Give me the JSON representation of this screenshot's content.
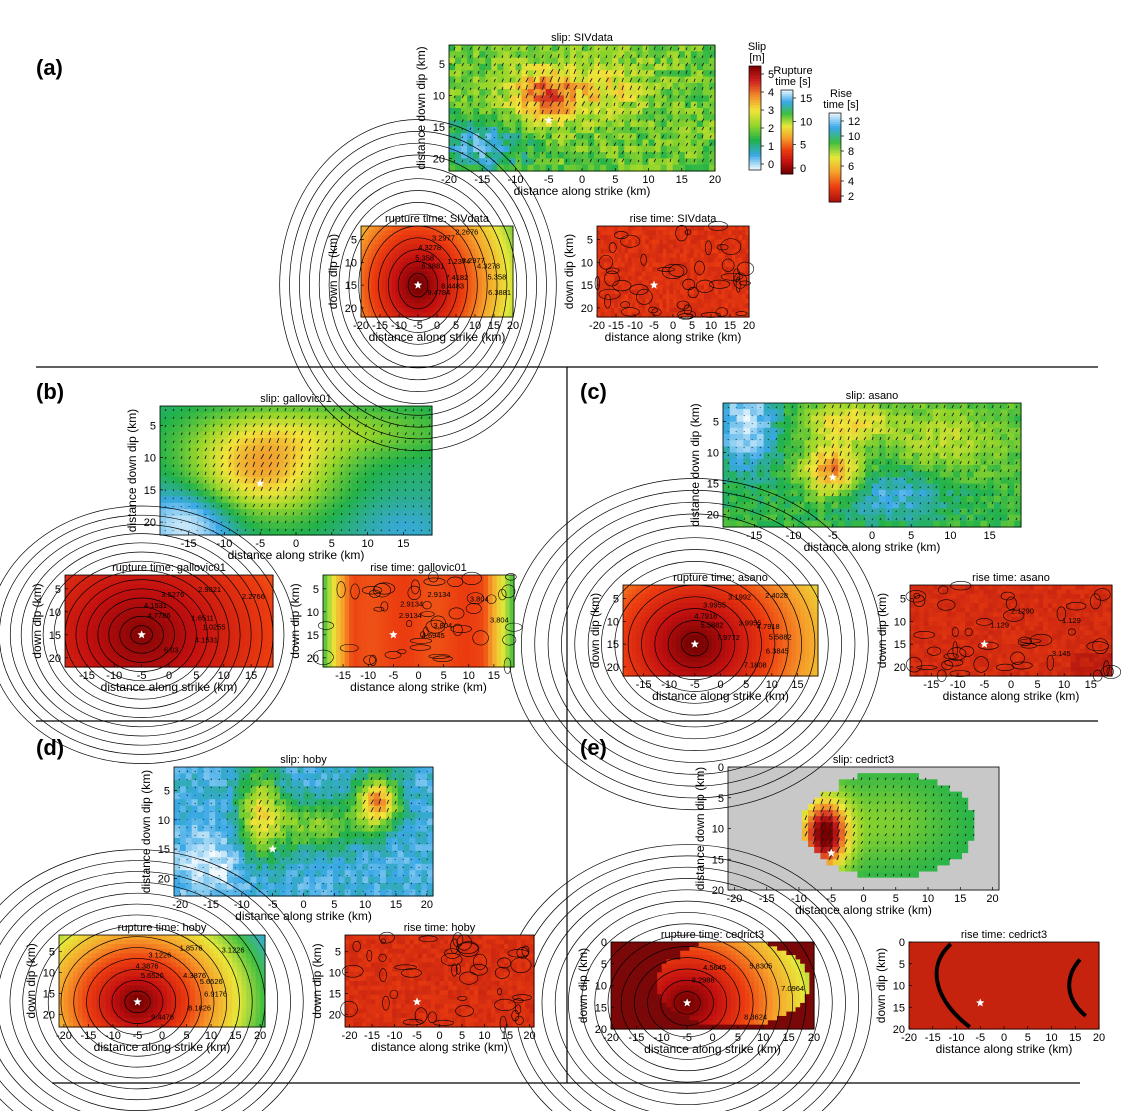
{
  "figure": {
    "colors": {
      "background_gray": "#c8c8c8",
      "star": "#ffffff",
      "arrow": "#1a1a1a",
      "contour": "#000000",
      "slip_scale": [
        "#f4fbff",
        "#39a8e6",
        "#21b24a",
        "#96d62a",
        "#f2e43a",
        "#f08a2a",
        "#d02020",
        "#7a0000"
      ],
      "rupture_scale": [
        "#6a0000",
        "#c31010",
        "#ec3d10",
        "#f6a02b",
        "#e8e83a",
        "#3fbf3f",
        "#38a8e8",
        "#eef8ff"
      ],
      "rise_scale": [
        "#a80f0f",
        "#ec3d10",
        "#f6a02b",
        "#e8e83a",
        "#3fbf3f",
        "#38a8e8",
        "#eef8ff"
      ]
    },
    "colorbars": [
      {
        "title_lines": [
          "Slip",
          "[m]"
        ],
        "ticks": [
          "5",
          "4",
          "3",
          "2",
          "1",
          "0"
        ],
        "scale": "slip"
      },
      {
        "title_lines": [
          "Rupture",
          "time [s]"
        ],
        "ticks": [
          "15",
          "10",
          "5",
          "0"
        ],
        "scale": "rupture"
      },
      {
        "title_lines": [
          "Rise",
          "time [s]"
        ],
        "ticks": [
          "12",
          "10",
          "8",
          "6",
          "4",
          "2"
        ],
        "scale": "rise"
      }
    ],
    "panels": [
      {
        "label": "(a)",
        "slip": {
          "title": "slip: SIVdata",
          "xlabel": "distance along strike (km)",
          "ylabel": "distance down dip (km)",
          "xticks": [
            "-20",
            "-15",
            "-10",
            "-5",
            "0",
            "5",
            "10",
            "15",
            "20"
          ],
          "yticks": [
            "5",
            "10",
            "15",
            "20"
          ]
        },
        "rupture": {
          "title": "rupture time: SIVdata",
          "xlabel": "distance along strike (km)",
          "ylabel": "down dip (km)",
          "xticks": [
            "-20",
            "-15",
            "-10",
            "-5",
            "0",
            "5",
            "10",
            "15",
            "20"
          ],
          "yticks": [
            "5",
            "10",
            "15",
            "20"
          ],
          "contour_labels": [
            "6.3881",
            "5.358",
            "4.3278",
            "3.2977",
            "2.2676",
            "1.2374",
            "3.2977",
            "4.3278",
            "5.358",
            "6.3881",
            "7.4182",
            "8.4483",
            "9.4784"
          ]
        },
        "rise": {
          "title": "rise time: SIVdata",
          "xlabel": "distance along strike (km)",
          "ylabel": "down dip (km)",
          "xticks": [
            "-20",
            "-15",
            "-10",
            "-5",
            "0",
            "5",
            "10",
            "15",
            "20"
          ],
          "yticks": [
            "5",
            "10",
            "15",
            "20"
          ]
        }
      },
      {
        "label": "(b)",
        "slip": {
          "title": "slip: gallovic01",
          "xlabel": "distance along strike (km)",
          "ylabel": "distance down dip (km)",
          "xticks": [
            "-15",
            "-10",
            "-5",
            "0",
            "5",
            "10",
            "15"
          ],
          "yticks": [
            "5",
            "10",
            "15",
            "20"
          ]
        },
        "rupture": {
          "title": "rupture time: gallovic01",
          "xlabel": "distance along strike (km)",
          "ylabel": "down dip (km)",
          "xticks": [
            "-15",
            "-10",
            "-5",
            "0",
            "5",
            "10",
            "15"
          ],
          "yticks": [
            "5",
            "10",
            "15",
            "20"
          ],
          "contour_labels": [
            "4.7786",
            "4.1531",
            "3.5276",
            "2.9021",
            "2.2766",
            "1.6511",
            "1.0255",
            "4.1531",
            "6.03"
          ]
        },
        "rise": {
          "title": "rise time: gallovic01",
          "xlabel": "distance along strike (km)",
          "ylabel": "down dip (km)",
          "xticks": [
            "-15",
            "-10",
            "-5",
            "0",
            "5",
            "10",
            "15"
          ],
          "yticks": [
            "5",
            "10",
            "15",
            "20"
          ],
          "contour_labels": [
            "2.9134",
            "2.9134",
            "2.9134",
            "3.804",
            "3.804",
            "3.804",
            "4.6945"
          ]
        }
      },
      {
        "label": "(c)",
        "slip": {
          "title": "slip: asano",
          "xlabel": "distance along strike (km)",
          "ylabel": "distance down dip (km)",
          "xticks": [
            "-15",
            "-10",
            "-5",
            "0",
            "5",
            "10",
            "15"
          ],
          "yticks": [
            "5",
            "10",
            "15",
            "20"
          ]
        },
        "rupture": {
          "title": "rupture time: asano",
          "xlabel": "distance along strike (km)",
          "ylabel": "down dip (km)",
          "xticks": [
            "-15",
            "-10",
            "-5",
            "0",
            "5",
            "10",
            "15"
          ],
          "yticks": [
            "5",
            "10",
            "15",
            "20"
          ],
          "contour_labels": [
            "5.5882",
            "4.7918",
            "3.9955",
            "3.1992",
            "2.4028",
            "3.9955",
            "4.7918",
            "5.5882",
            "6.3845",
            "7.1808",
            "7.9772"
          ]
        },
        "rise": {
          "title": "rise time: asano",
          "xlabel": "distance along strike (km)",
          "ylabel": "down dip (km)",
          "xticks": [
            "-15",
            "-10",
            "-5",
            "0",
            "5",
            "10",
            "15"
          ],
          "yticks": [
            "5",
            "10",
            "15",
            "20"
          ],
          "contour_labels": [
            "1.129",
            "2.1290",
            "1.129",
            "3.145"
          ]
        }
      },
      {
        "label": "(d)",
        "slip": {
          "title": "slip: hoby",
          "xlabel": "distance along strike (km)",
          "ylabel": "distance down dip (km)",
          "xticks": [
            "-20",
            "-15",
            "-10",
            "-5",
            "0",
            "5",
            "10",
            "15",
            "20"
          ],
          "yticks": [
            "5",
            "10",
            "15",
            "20"
          ]
        },
        "rupture": {
          "title": "rupture time: hoby",
          "xlabel": "distance along strike (km)",
          "ylabel": "down dip (km)",
          "xticks": [
            "-20",
            "-15",
            "-10",
            "-5",
            "0",
            "5",
            "10",
            "15",
            "20"
          ],
          "yticks": [
            "5",
            "10",
            "15",
            "20"
          ],
          "contour_labels": [
            "5.6526",
            "4.3876",
            "3.1226",
            "1.8576",
            "3.1226",
            "4.3876",
            "5.6526",
            "6.9176",
            "8.1826",
            "9.4476"
          ]
        },
        "rise": {
          "title": "rise time: hoby",
          "xlabel": "distance along strike (km)",
          "ylabel": "down dip (km)",
          "xticks": [
            "-20",
            "-15",
            "-10",
            "-5",
            "0",
            "5",
            "10",
            "15",
            "20"
          ],
          "yticks": [
            "5",
            "10",
            "15",
            "20"
          ]
        }
      },
      {
        "label": "(e)",
        "slip": {
          "title": "slip: cedrict3",
          "xlabel": "distance along strike (km)",
          "ylabel": "distance down dip (km)",
          "xticks": [
            "-20",
            "-15",
            "-10",
            "-5",
            "0",
            "5",
            "10",
            "15",
            "20"
          ],
          "yticks": [
            "0",
            "5",
            "10",
            "15",
            "20"
          ]
        },
        "rupture": {
          "title": "rupture time: cedrict3",
          "xlabel": "distance along strike (km)",
          "ylabel": "down dip (km)",
          "xticks": [
            "-20",
            "-15",
            "-10",
            "-5",
            "0",
            "5",
            "10",
            "15",
            "20"
          ],
          "yticks": [
            "0",
            "5",
            "10",
            "15",
            "20"
          ],
          "contour_labels": [
            "3.2986",
            "4.5645",
            "5.8305",
            "7.0964",
            "8.3624"
          ]
        },
        "rise": {
          "title": "rise time: cedrict3",
          "xlabel": "distance along strike (km)",
          "ylabel": "down dip (km)",
          "xticks": [
            "-20",
            "-15",
            "-10",
            "-5",
            "0",
            "5",
            "10",
            "15",
            "20"
          ],
          "yticks": [
            "0",
            "5",
            "10",
            "15",
            "20"
          ]
        }
      }
    ]
  },
  "chart_data": [
    {
      "type": "heatmap",
      "title": "slip: SIVdata",
      "xlabel": "distance along strike (km)",
      "ylabel": "distance down dip (km)",
      "xlim": [
        -20,
        20
      ],
      "ylim": [
        22,
        2
      ],
      "colorbar": "Slip [m]",
      "clim": [
        0,
        5
      ],
      "hypocenter": [
        -5,
        14
      ],
      "peak_slip_near": [
        -5,
        10
      ],
      "peak_slip_value": 4
    },
    {
      "type": "heatmap",
      "title": "rupture time: SIVdata",
      "xlabel": "distance along strike (km)",
      "ylabel": "down dip (km)",
      "xlim": [
        -20,
        20
      ],
      "ylim": [
        22,
        2
      ],
      "colorbar": "Rupture time [s]",
      "clim": [
        0,
        15
      ],
      "hypocenter": [
        -5,
        15
      ],
      "contour_levels": [
        1.2374,
        2.2676,
        3.2977,
        4.3278,
        5.358,
        6.3881,
        7.4182,
        8.4483,
        9.4784
      ]
    },
    {
      "type": "heatmap",
      "title": "rise time: SIVdata",
      "xlabel": "distance along strike (km)",
      "ylabel": "down dip (km)",
      "xlim": [
        -20,
        20
      ],
      "ylim": [
        22,
        2
      ],
      "colorbar": "Rise time [s]",
      "clim": [
        1,
        12
      ],
      "hypocenter": [
        -5,
        15
      ]
    },
    {
      "type": "heatmap",
      "title": "slip: gallovic01",
      "xlabel": "distance along strike (km)",
      "ylabel": "distance down dip (km)",
      "xlim": [
        -19,
        19
      ],
      "ylim": [
        22,
        2
      ],
      "colorbar": "Slip [m]",
      "clim": [
        0,
        5
      ],
      "hypocenter": [
        -5,
        14
      ],
      "peak_slip_near": [
        -6,
        13
      ],
      "peak_slip_value": 3.5
    },
    {
      "type": "heatmap",
      "title": "rupture time: gallovic01",
      "xlabel": "distance along strike (km)",
      "ylabel": "down dip (km)",
      "xlim": [
        -19,
        19
      ],
      "ylim": [
        22,
        2
      ],
      "colorbar": "Rupture time [s]",
      "clim": [
        0,
        15
      ],
      "hypocenter": [
        -5,
        15
      ],
      "contour_levels": [
        1.0255,
        1.6511,
        2.2766,
        2.9021,
        3.5276,
        4.1531,
        4.7786,
        6.03
      ]
    },
    {
      "type": "heatmap",
      "title": "rise time: gallovic01",
      "xlabel": "distance along strike (km)",
      "ylabel": "down dip (km)",
      "xlim": [
        -19,
        19
      ],
      "ylim": [
        22,
        2
      ],
      "colorbar": "Rise time [s]",
      "clim": [
        1,
        12
      ],
      "hypocenter": [
        -5,
        15
      ],
      "contour_levels": [
        2.9134,
        3.804,
        4.6945
      ]
    },
    {
      "type": "heatmap",
      "title": "slip: asano",
      "xlabel": "distance along strike (km)",
      "ylabel": "distance down dip (km)",
      "xlim": [
        -19,
        19
      ],
      "ylim": [
        22,
        2
      ],
      "colorbar": "Slip [m]",
      "clim": [
        0,
        5
      ],
      "hypocenter": [
        -5,
        14
      ],
      "peak_slip_near": [
        -5,
        13
      ],
      "peak_slip_value": 4
    },
    {
      "type": "heatmap",
      "title": "rupture time: asano",
      "xlabel": "distance along strike (km)",
      "ylabel": "down dip (km)",
      "xlim": [
        -19,
        19
      ],
      "ylim": [
        22,
        2
      ],
      "colorbar": "Rupture time [s]",
      "clim": [
        0,
        15
      ],
      "hypocenter": [
        -5,
        15
      ],
      "contour_levels": [
        2.4028,
        3.1992,
        3.9955,
        4.7918,
        5.5882,
        6.3845,
        7.1808,
        7.9772
      ]
    },
    {
      "type": "heatmap",
      "title": "rise time: asano",
      "xlabel": "distance along strike (km)",
      "ylabel": "down dip (km)",
      "xlim": [
        -19,
        19
      ],
      "ylim": [
        22,
        2
      ],
      "colorbar": "Rise time [s]",
      "clim": [
        1,
        12
      ],
      "hypocenter": [
        -5,
        15
      ],
      "contour_levels": [
        1.129,
        2.129,
        3.145
      ]
    },
    {
      "type": "heatmap",
      "title": "slip: hoby",
      "xlabel": "distance along strike (km)",
      "ylabel": "distance down dip (km)",
      "xlim": [
        -21,
        21
      ],
      "ylim": [
        23,
        1
      ],
      "colorbar": "Slip [m]",
      "clim": [
        0,
        5
      ],
      "hypocenter": [
        -5,
        15
      ],
      "peak_slip_near": [
        12,
        7
      ],
      "peak_slip_value": 3.5
    },
    {
      "type": "heatmap",
      "title": "rupture time: hoby",
      "xlabel": "distance along strike (km)",
      "ylabel": "down dip (km)",
      "xlim": [
        -21,
        21
      ],
      "ylim": [
        23,
        1
      ],
      "colorbar": "Rupture time [s]",
      "clim": [
        0,
        15
      ],
      "hypocenter": [
        -5,
        17
      ],
      "contour_levels": [
        1.8576,
        3.1226,
        4.3876,
        5.6526,
        6.9176,
        8.1826,
        9.4476
      ]
    },
    {
      "type": "heatmap",
      "title": "rise time: hoby",
      "xlabel": "distance along strike (km)",
      "ylabel": "down dip (km)",
      "xlim": [
        -21,
        21
      ],
      "ylim": [
        23,
        1
      ],
      "colorbar": "Rise time [s]",
      "clim": [
        1,
        12
      ],
      "hypocenter": [
        -5,
        17
      ]
    },
    {
      "type": "heatmap",
      "title": "slip: cedrict3",
      "xlabel": "distance along strike (km)",
      "ylabel": "distance down dip (km)",
      "xlim": [
        -21,
        21
      ],
      "ylim": [
        20,
        0
      ],
      "colorbar": "Slip [m]",
      "clim": [
        0,
        5
      ],
      "hypocenter": [
        -5,
        14
      ],
      "peak_slip_near": [
        -6,
        11
      ],
      "peak_slip_value": 5
    },
    {
      "type": "heatmap",
      "title": "rupture time: cedrict3",
      "xlabel": "distance along strike (km)",
      "ylabel": "down dip (km)",
      "xlim": [
        -20,
        20
      ],
      "ylim": [
        20,
        0
      ],
      "colorbar": "Rupture time [s]",
      "clim": [
        0,
        15
      ],
      "hypocenter": [
        -5,
        14
      ],
      "contour_levels": [
        3.2986,
        4.5645,
        5.8305,
        7.0964,
        8.3624
      ]
    },
    {
      "type": "heatmap",
      "title": "rise time: cedrict3",
      "xlabel": "distance along strike (km)",
      "ylabel": "down dip (km)",
      "xlim": [
        -20,
        20
      ],
      "ylim": [
        20,
        0
      ],
      "colorbar": "Rise time [s]",
      "clim": [
        1,
        12
      ],
      "hypocenter": [
        -5,
        14
      ]
    }
  ]
}
